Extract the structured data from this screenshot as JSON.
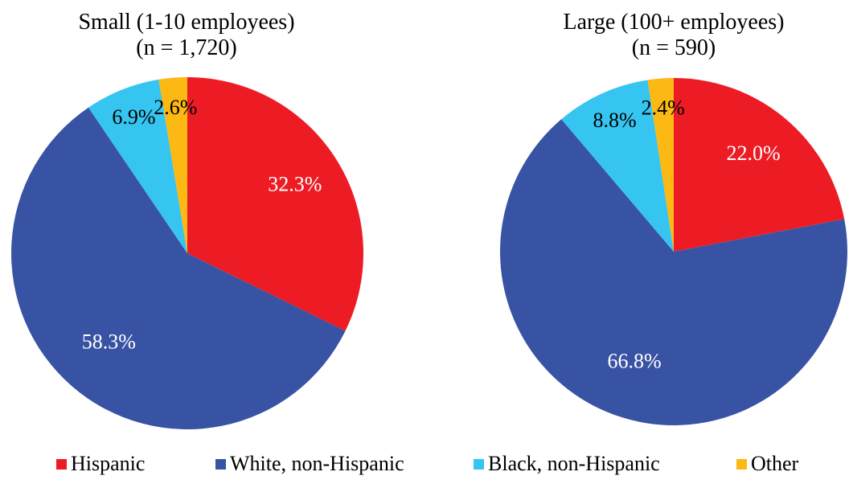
{
  "chart_data": [
    {
      "type": "pie",
      "title": "Small (1-10 employees)",
      "subtitle": "(n = 1,720)",
      "categories": [
        "Hispanic",
        "White, non-Hispanic",
        "Black, non-Hispanic",
        "Other"
      ],
      "values": [
        32.3,
        58.3,
        6.9,
        2.6
      ],
      "labels": [
        "32.3%",
        "58.3%",
        "6.9%",
        "2.6%"
      ]
    },
    {
      "type": "pie",
      "title": "Large (100+ employees)",
      "subtitle": "(n = 590)",
      "categories": [
        "Hispanic",
        "White, non-Hispanic",
        "Black, non-Hispanic",
        "Other"
      ],
      "values": [
        22.0,
        66.8,
        8.8,
        2.4
      ],
      "labels": [
        "22.0%",
        "66.8%",
        "8.8%",
        "2.4%"
      ]
    }
  ],
  "legend": {
    "placement": "bottom",
    "items": [
      {
        "label": "Hispanic",
        "color": "#ed1c24"
      },
      {
        "label": "White, non-Hispanic",
        "color": "#3953a4"
      },
      {
        "label": "Black, non-Hispanic",
        "color": "#36c5f0"
      },
      {
        "label": "Other",
        "color": "#fcb813"
      }
    ]
  },
  "colors": {
    "label_on_dark": "#ffffff",
    "label_on_light": "#000000"
  }
}
